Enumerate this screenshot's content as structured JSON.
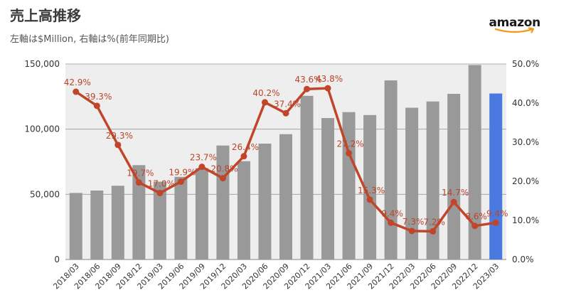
{
  "header": {
    "title": "売上高推移",
    "subtitle": "左軸は$Million, 右軸は%(前年同期比)",
    "brand": "amazon"
  },
  "colors": {
    "bar": "#999999",
    "bar_highlight": "#4a7ae0",
    "line": "#c0452a",
    "label": "#b9452a",
    "plot_bg": "#eeeeee",
    "grid": "#9a9a9a"
  },
  "chart_data": {
    "type": "bar+line",
    "categories": [
      "2018/03",
      "2018/06",
      "2018/09",
      "2018/12",
      "2019/03",
      "2019/06",
      "2019/09",
      "2019/12",
      "2020/03",
      "2020/06",
      "2020/09",
      "2020/12",
      "2021/03",
      "2021/06",
      "2021/09",
      "2021/12",
      "2022/03",
      "2022/06",
      "2022/09",
      "2022/12",
      "2023/03"
    ],
    "series": [
      {
        "type": "bar",
        "axis": "left",
        "values": [
          51042,
          52886,
          56576,
          72383,
          59700,
          63404,
          69981,
          87437,
          75452,
          88912,
          96145,
          125555,
          108518,
          113080,
          110812,
          137412,
          116444,
          121234,
          127101,
          149204,
          127358
        ],
        "highlight_index": 20
      },
      {
        "type": "line",
        "axis": "right",
        "values": [
          42.9,
          39.3,
          29.3,
          19.7,
          17.0,
          19.9,
          23.7,
          20.8,
          26.4,
          40.2,
          37.4,
          43.6,
          43.8,
          27.2,
          15.3,
          9.4,
          7.3,
          7.2,
          14.7,
          8.6,
          9.4
        ],
        "labels": [
          "42.9%",
          "39.3%",
          "29.3%",
          "19.7%",
          "17.0%",
          "19.9%",
          "23.7%",
          "20.8%",
          "26.4%",
          "40.2%",
          "37.4%",
          "43.6%",
          "43.8%",
          "27.2%",
          "15.3%",
          "9.4%",
          "7.3%",
          "7.2%",
          "14.7%",
          "8.6%",
          "9.4%"
        ]
      }
    ],
    "y_left": {
      "min": 0,
      "max": 150000,
      "ticks": [
        0,
        50000,
        100000,
        150000
      ],
      "tick_labels": [
        "0",
        "50,000",
        "100,000",
        "150,000"
      ]
    },
    "y_right": {
      "min": 0,
      "max": 50,
      "ticks": [
        0,
        10,
        20,
        30,
        40,
        50
      ],
      "tick_labels": [
        "0.0%",
        "10.0%",
        "20.0%",
        "30.0%",
        "40.0%",
        "50.0%"
      ]
    },
    "grid": true,
    "legend": "none"
  }
}
